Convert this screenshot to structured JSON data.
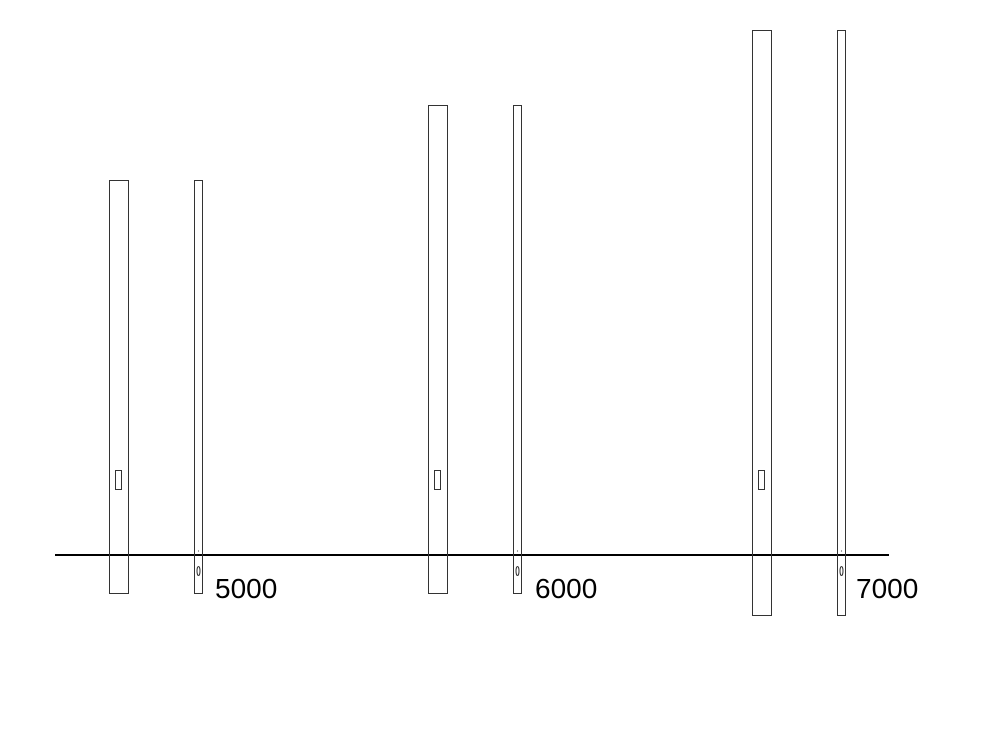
{
  "drawing": {
    "line_color": "#000000",
    "poles": [
      {
        "height_label": "5000",
        "height": 5000
      },
      {
        "height_label": "6000",
        "height": 6000
      },
      {
        "height_label": "7000",
        "height": 7000
      }
    ]
  }
}
